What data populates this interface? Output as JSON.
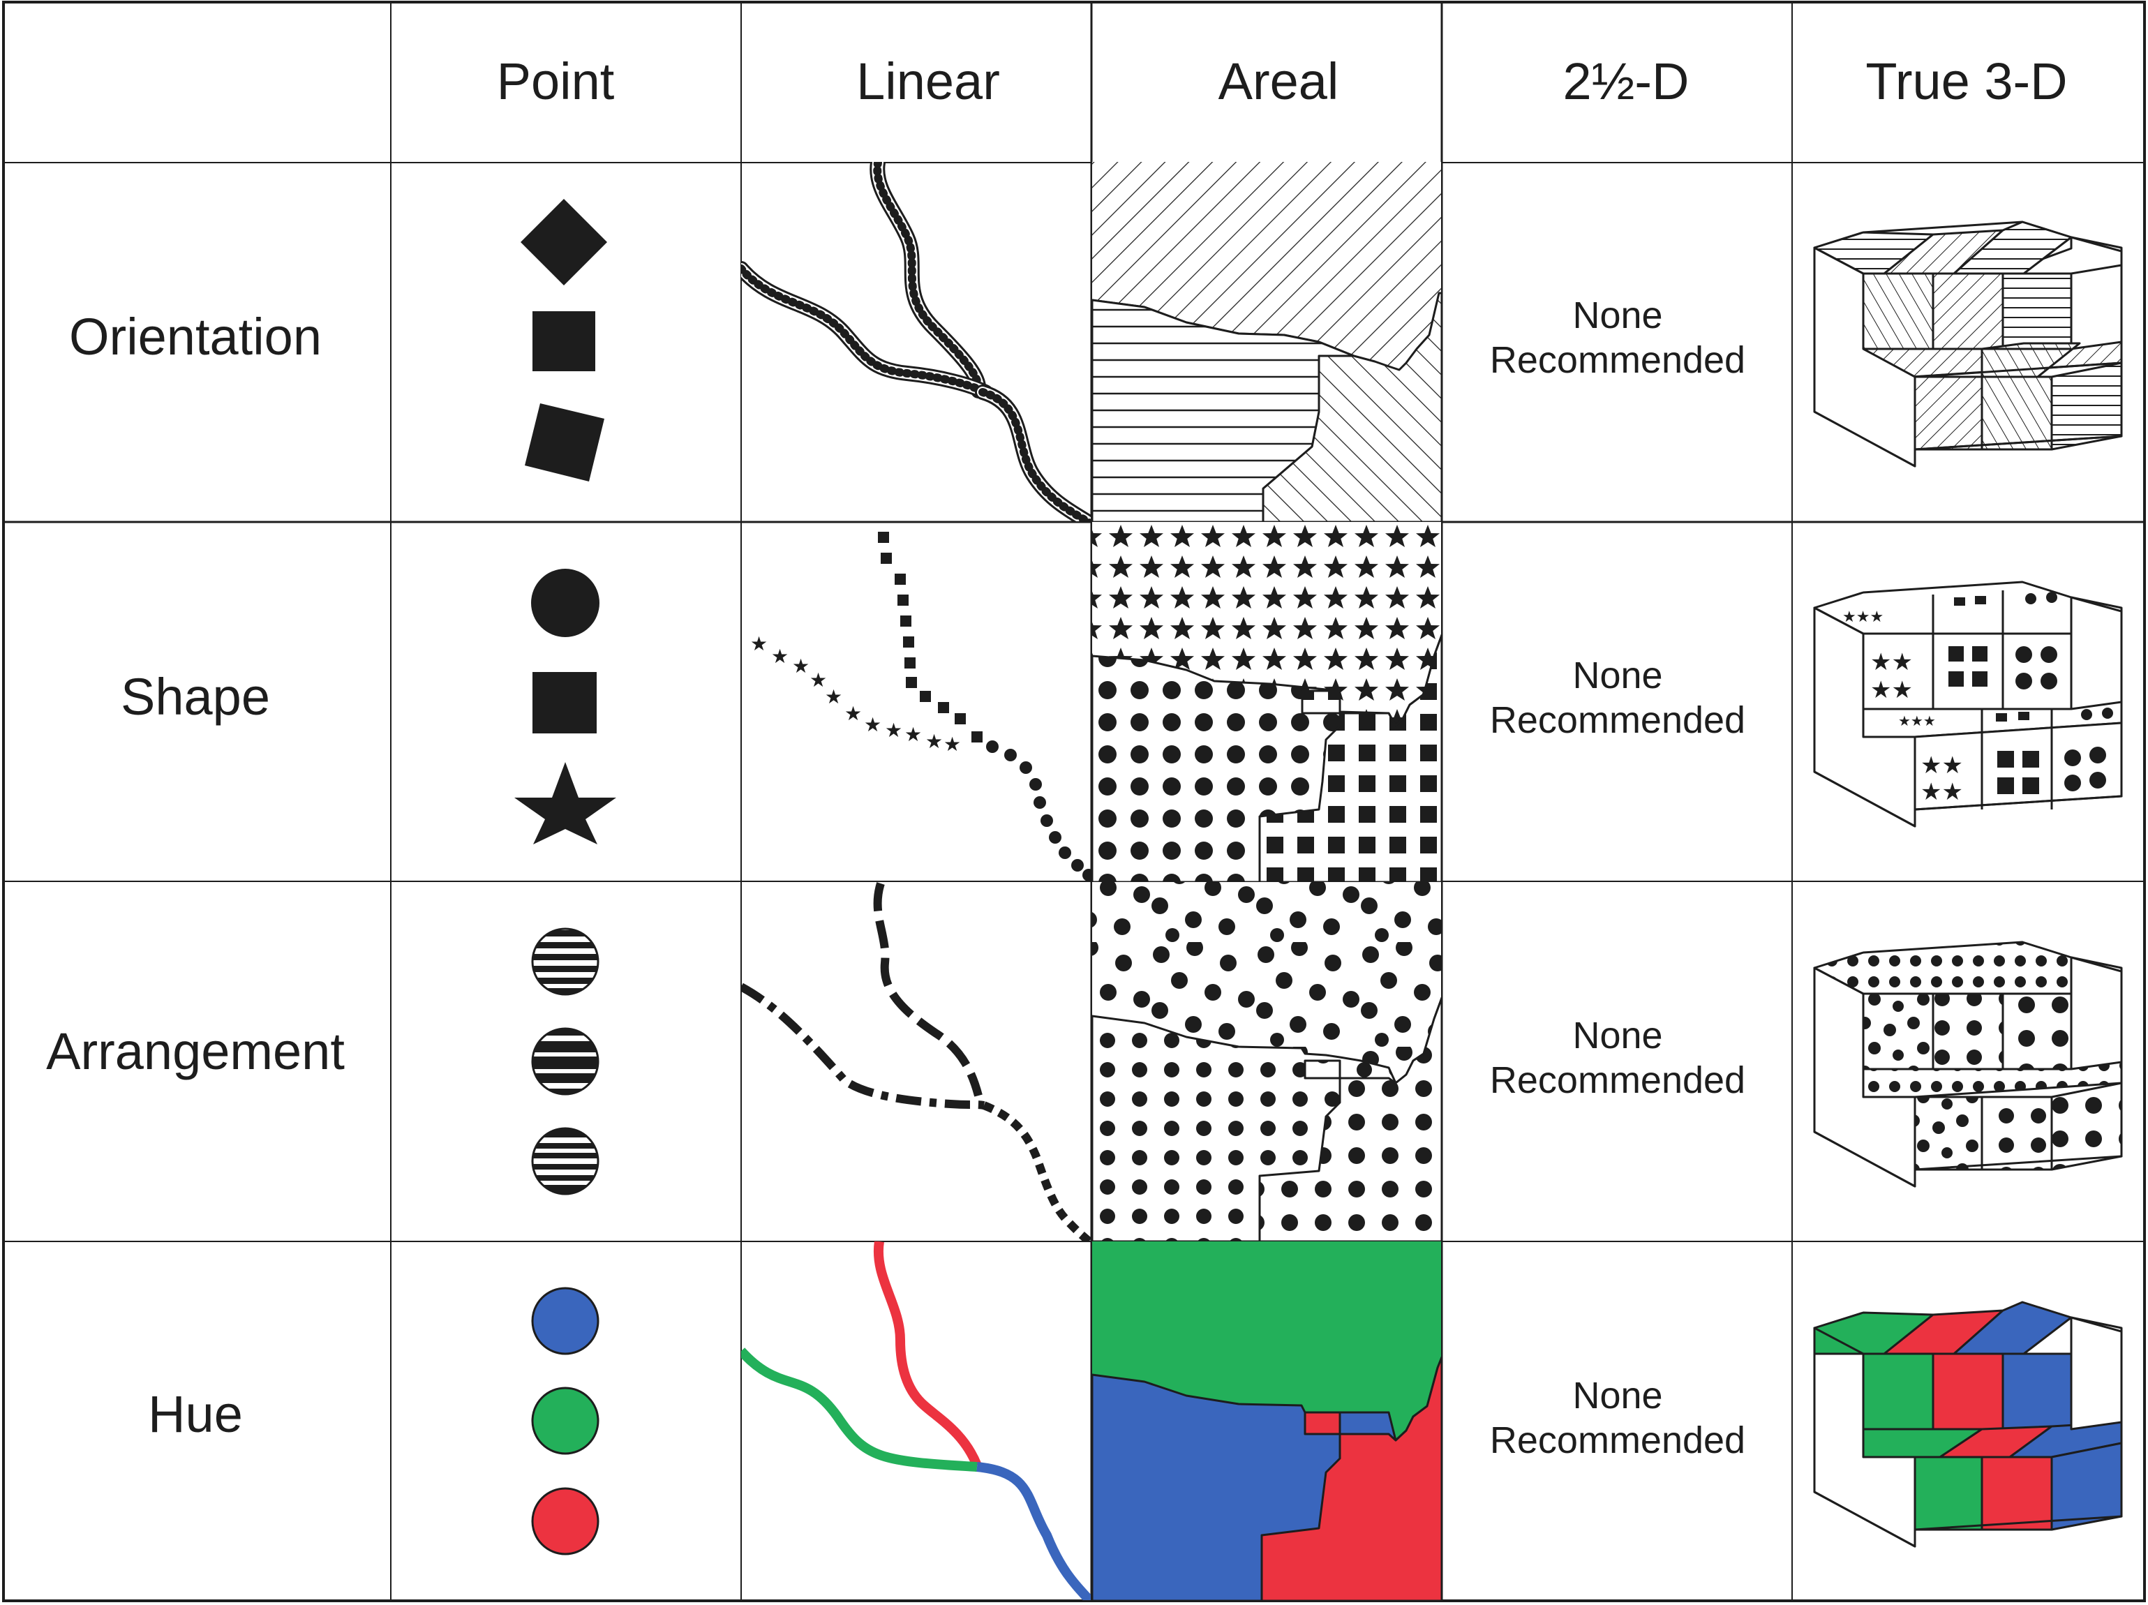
{
  "colors": {
    "ink": "#1d1d1d",
    "grid": "#1d1d1d",
    "blue": "#3a66bd",
    "green": "#23b05a",
    "red": "#ec3340",
    "white": "#ffffff"
  },
  "columns": [
    "Point",
    "Linear",
    "Areal",
    "2½-D",
    "True 3-D"
  ],
  "rows": [
    {
      "label": "Orientation",
      "point_symbols": [
        "diamond-icon",
        "square-icon",
        "rotated-square-icon"
      ],
      "two_half_d": [
        "None",
        "Recommended"
      ]
    },
    {
      "label": "Shape",
      "point_symbols": [
        "circle-icon",
        "square-icon",
        "star-icon"
      ],
      "two_half_d": [
        "None",
        "Recommended"
      ]
    },
    {
      "label": "Arrangement",
      "point_symbols": [
        "striped-circle-icon",
        "striped-circle-icon",
        "striped-circle-icon"
      ],
      "two_half_d": [
        "None",
        "Recommended"
      ]
    },
    {
      "label": "Hue",
      "point_symbols": [
        "blue-circle-icon",
        "green-circle-icon",
        "red-circle-icon"
      ],
      "two_half_d": [
        "None",
        "Recommended"
      ]
    }
  ]
}
